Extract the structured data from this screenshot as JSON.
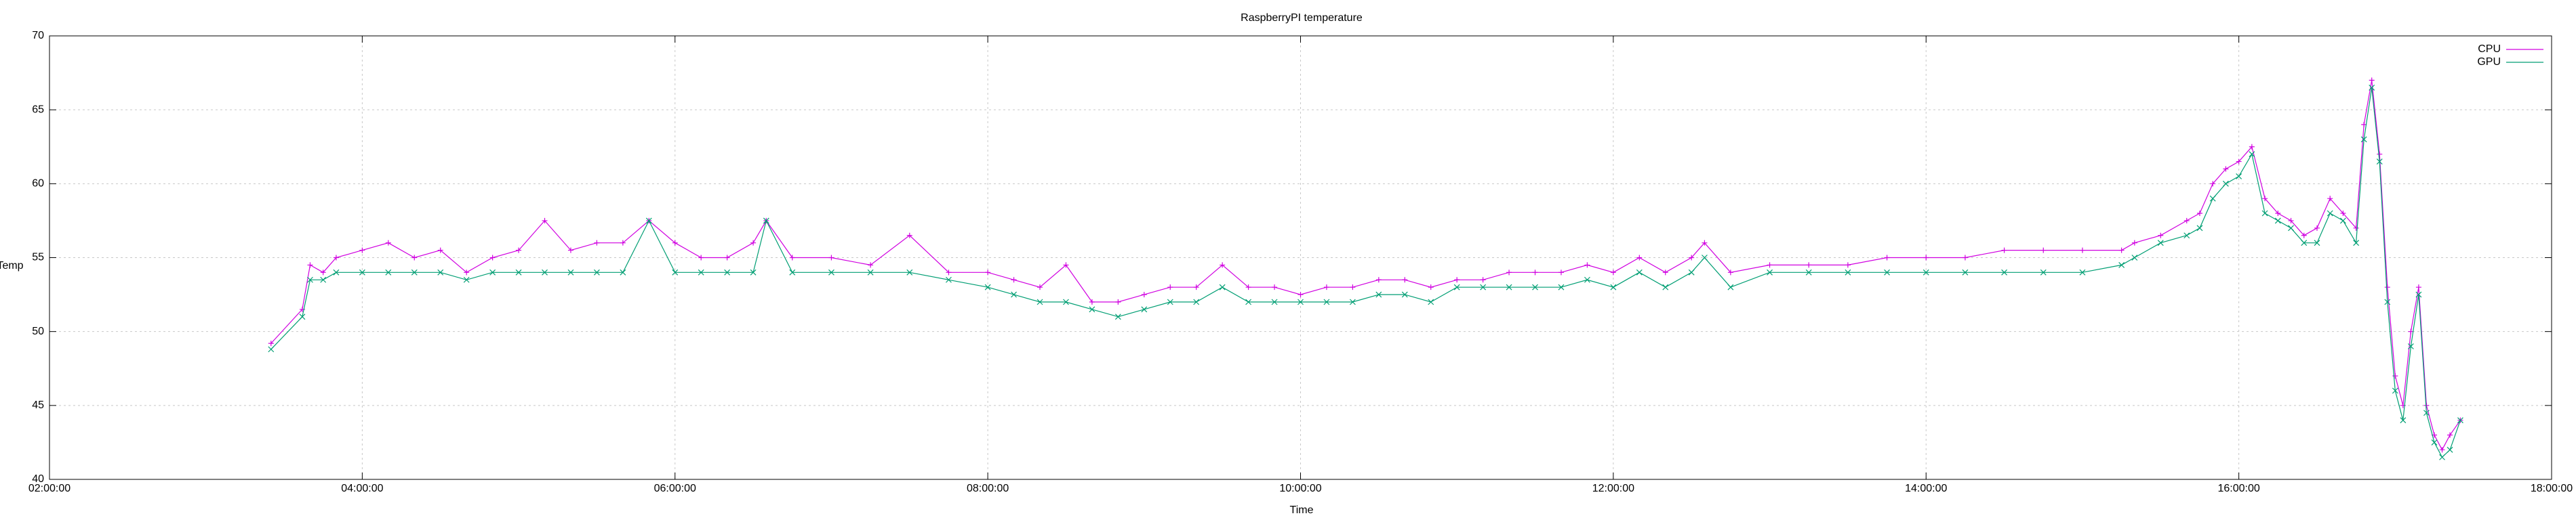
{
  "chart_data": {
    "type": "line",
    "title": "RaspberryPI temperature",
    "x_label": "Time",
    "y_label": "Temp",
    "xlim": [
      "02:00:00",
      "18:00:00"
    ],
    "xticks": [
      "02:00:00",
      "04:00:00",
      "06:00:00",
      "08:00:00",
      "10:00:00",
      "12:00:00",
      "14:00:00",
      "16:00:00",
      "18:00:00"
    ],
    "ylim": [
      40,
      70
    ],
    "yticks": [
      40,
      45,
      50,
      55,
      60,
      65,
      70
    ],
    "grid": true,
    "legend": "top-right",
    "x": [
      "03:25:00",
      "03:37:00",
      "03:40:00",
      "03:45:00",
      "03:50:00",
      "04:00:00",
      "04:10:00",
      "04:20:00",
      "04:30:00",
      "04:40:00",
      "04:50:00",
      "05:00:00",
      "05:10:00",
      "05:20:00",
      "05:30:00",
      "05:40:00",
      "05:50:00",
      "06:00:00",
      "06:10:00",
      "06:20:00",
      "06:30:00",
      "06:35:00",
      "06:45:00",
      "07:00:00",
      "07:15:00",
      "07:30:00",
      "07:45:00",
      "08:00:00",
      "08:10:00",
      "08:20:00",
      "08:30:00",
      "08:40:00",
      "08:50:00",
      "09:00:00",
      "09:10:00",
      "09:20:00",
      "09:30:00",
      "09:40:00",
      "09:50:00",
      "10:00:00",
      "10:10:00",
      "10:20:00",
      "10:30:00",
      "10:40:00",
      "10:50:00",
      "11:00:00",
      "11:10:00",
      "11:20:00",
      "11:30:00",
      "11:40:00",
      "11:50:00",
      "12:00:00",
      "12:10:00",
      "12:20:00",
      "12:30:00",
      "12:35:00",
      "12:45:00",
      "13:00:00",
      "13:15:00",
      "13:30:00",
      "13:45:00",
      "14:00:00",
      "14:15:00",
      "14:30:00",
      "14:45:00",
      "15:00:00",
      "15:15:00",
      "15:20:00",
      "15:30:00",
      "15:40:00",
      "15:45:00",
      "15:50:00",
      "15:55:00",
      "16:00:00",
      "16:05:00",
      "16:10:00",
      "16:15:00",
      "16:20:00",
      "16:25:00",
      "16:30:00",
      "16:35:00",
      "16:40:00",
      "16:45:00",
      "16:48:00",
      "16:51:00",
      "16:54:00",
      "16:57:00",
      "17:00:00",
      "17:03:00",
      "17:06:00",
      "17:09:00",
      "17:12:00",
      "17:15:00",
      "17:18:00",
      "17:21:00",
      "17:25:00"
    ],
    "series": [
      {
        "name": "CPU",
        "color": "#d000e0",
        "values": [
          49.2,
          51.5,
          54.5,
          54,
          55,
          55.5,
          56,
          55,
          55.5,
          54,
          55,
          55.5,
          57.5,
          55.5,
          56,
          56,
          57.5,
          56,
          55,
          55,
          56,
          57.5,
          55,
          55,
          54.5,
          56.5,
          54,
          54,
          53.5,
          53,
          54.5,
          52,
          52,
          52.5,
          53,
          53,
          54.5,
          53,
          53,
          52.5,
          53,
          53,
          53.5,
          53.5,
          53,
          53.5,
          53.5,
          54,
          54,
          54,
          54.5,
          54,
          55,
          54,
          55,
          56,
          54,
          54.5,
          54.5,
          54.5,
          55,
          55,
          55,
          55.5,
          55.5,
          55.5,
          55.5,
          56,
          56.5,
          57.5,
          58,
          60,
          61,
          61.5,
          62.5,
          59,
          58,
          57.5,
          56.5,
          57,
          59,
          58,
          57,
          64,
          67,
          62,
          53,
          47,
          45,
          50,
          53,
          45,
          43,
          42,
          43,
          44
        ]
      },
      {
        "name": "GPU",
        "color": "#009e73",
        "values": [
          48.8,
          51,
          53.5,
          53.5,
          54,
          54,
          54,
          54,
          54,
          53.5,
          54,
          54,
          54,
          54,
          54,
          54,
          57.5,
          54,
          54,
          54,
          54,
          57.5,
          54,
          54,
          54,
          54,
          53.5,
          53,
          52.5,
          52,
          52,
          51.5,
          51,
          51.5,
          52,
          52,
          53,
          52,
          52,
          52,
          52,
          52,
          52.5,
          52.5,
          52,
          53,
          53,
          53,
          53,
          53,
          53.5,
          53,
          54,
          53,
          54,
          55,
          53,
          54,
          54,
          54,
          54,
          54,
          54,
          54,
          54,
          54,
          54.5,
          55,
          56,
          56.5,
          57,
          59,
          60,
          60.5,
          62,
          58,
          57.5,
          57,
          56,
          56,
          58,
          57.5,
          56,
          63,
          66.5,
          61.5,
          52,
          46,
          44,
          49,
          52.5,
          44.5,
          42.5,
          41.5,
          42,
          44
        ]
      }
    ]
  }
}
